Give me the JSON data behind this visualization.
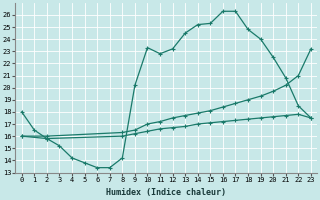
{
  "xlabel": "Humidex (Indice chaleur)",
  "bg_color": "#c8e8e8",
  "grid_color": "#b0d0d0",
  "line_color": "#1a7a6a",
  "xlim": [
    -0.5,
    23.5
  ],
  "ylim": [
    13,
    27
  ],
  "xticks": [
    0,
    1,
    2,
    3,
    4,
    5,
    6,
    7,
    8,
    9,
    10,
    11,
    12,
    13,
    14,
    15,
    16,
    17,
    18,
    19,
    20,
    21,
    22,
    23
  ],
  "yticks": [
    13,
    14,
    15,
    16,
    17,
    18,
    19,
    20,
    21,
    22,
    23,
    24,
    25,
    26
  ],
  "curve1_x": [
    0,
    1,
    2,
    3,
    4,
    5,
    6,
    7,
    8,
    9,
    10,
    11,
    12,
    13,
    14,
    15,
    16,
    17,
    18,
    19,
    20,
    21,
    22,
    23
  ],
  "curve1_y": [
    18.0,
    16.5,
    15.8,
    15.2,
    14.2,
    13.8,
    13.4,
    13.4,
    14.2,
    20.2,
    23.3,
    22.8,
    23.2,
    24.5,
    25.2,
    25.3,
    26.3,
    26.3,
    24.8,
    24.0,
    22.5,
    20.8,
    18.5,
    17.5
  ],
  "curve2_x": [
    0,
    2,
    8,
    9,
    10,
    11,
    12,
    13,
    14,
    15,
    16,
    17,
    18,
    19,
    20,
    21,
    22,
    23
  ],
  "curve2_y": [
    16.0,
    16.0,
    16.3,
    16.5,
    17.0,
    17.2,
    17.5,
    17.7,
    17.9,
    18.1,
    18.4,
    18.7,
    19.0,
    19.3,
    19.7,
    20.2,
    21.0,
    23.2
  ],
  "curve3_x": [
    0,
    2,
    8,
    9,
    10,
    11,
    12,
    13,
    14,
    15,
    16,
    17,
    18,
    19,
    20,
    21,
    22,
    23
  ],
  "curve3_y": [
    16.0,
    15.8,
    16.0,
    16.2,
    16.4,
    16.6,
    16.7,
    16.8,
    17.0,
    17.1,
    17.2,
    17.3,
    17.4,
    17.5,
    17.6,
    17.7,
    17.8,
    17.5
  ]
}
